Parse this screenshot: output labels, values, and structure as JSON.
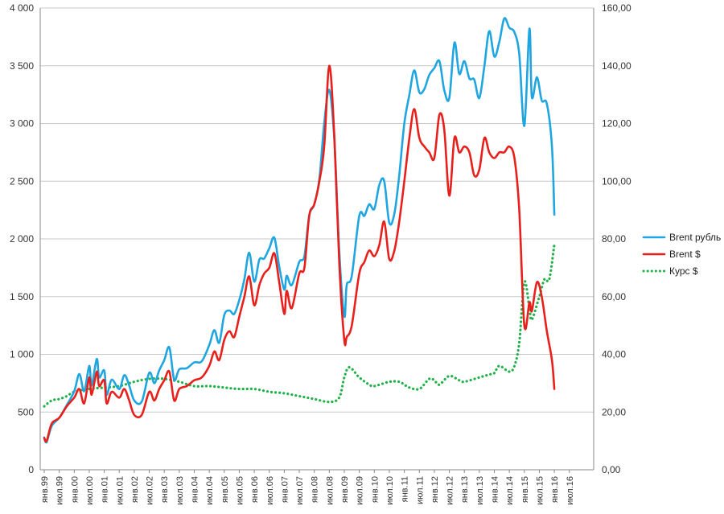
{
  "chart_data": {
    "type": "line",
    "title": "",
    "grid": true,
    "legend_position": "right",
    "x_labels": [
      "янв.99",
      "июл.99",
      "янв.00",
      "июл.00",
      "янв.01",
      "июл.01",
      "янв.02",
      "июл.02",
      "янв.03",
      "июл.03",
      "янв.04",
      "июл.04",
      "янв.05",
      "июл.05",
      "янв.06",
      "июл.06",
      "янв.07",
      "июл.07",
      "янв.08",
      "июл.08",
      "янв.09",
      "июл.09",
      "янв.10",
      "июл.10",
      "янв.11",
      "июл.11",
      "янв.12",
      "июл.12",
      "янв.13",
      "июл.13",
      "янв.14",
      "июл.14",
      "янв.15",
      "июл.15",
      "янв.16",
      "июл.16"
    ],
    "y_left": {
      "min": 0,
      "max": 4000,
      "ticks": [
        0,
        500,
        1000,
        1500,
        2000,
        2500,
        3000,
        3500,
        4000
      ],
      "tick_labels": [
        "0",
        "500",
        "1 000",
        "1 500",
        "2 000",
        "2 500",
        "3 000",
        "3 500",
        "4 000"
      ]
    },
    "y_right": {
      "min": 0,
      "max": 160,
      "ticks": [
        0,
        20,
        40,
        60,
        80,
        100,
        120,
        140,
        160
      ],
      "tick_labels": [
        "0,00",
        "20,00",
        "40,00",
        "60,00",
        "80,00",
        "100,00",
        "120,00",
        "140,00",
        "160,00"
      ]
    },
    "series": [
      {
        "name": "Brent рубль",
        "axis": "left",
        "color": "#1fa6e0",
        "style": "solid",
        "points": [
          [
            1999.0,
            280
          ],
          [
            1999.08,
            240
          ],
          [
            1999.25,
            380
          ],
          [
            1999.5,
            450
          ],
          [
            1999.75,
            560
          ],
          [
            2000.0,
            680
          ],
          [
            2000.17,
            830
          ],
          [
            2000.33,
            680
          ],
          [
            2000.5,
            900
          ],
          [
            2000.58,
            730
          ],
          [
            2000.75,
            960
          ],
          [
            2000.83,
            800
          ],
          [
            2001.0,
            860
          ],
          [
            2001.08,
            650
          ],
          [
            2001.25,
            780
          ],
          [
            2001.5,
            700
          ],
          [
            2001.67,
            820
          ],
          [
            2001.83,
            730
          ],
          [
            2002.0,
            600
          ],
          [
            2002.25,
            590
          ],
          [
            2002.5,
            840
          ],
          [
            2002.67,
            750
          ],
          [
            2002.83,
            860
          ],
          [
            2003.0,
            950
          ],
          [
            2003.17,
            1060
          ],
          [
            2003.33,
            780
          ],
          [
            2003.5,
            870
          ],
          [
            2003.75,
            880
          ],
          [
            2004.0,
            930
          ],
          [
            2004.25,
            940
          ],
          [
            2004.5,
            1080
          ],
          [
            2004.67,
            1210
          ],
          [
            2004.83,
            1100
          ],
          [
            2005.0,
            1340
          ],
          [
            2005.17,
            1380
          ],
          [
            2005.33,
            1350
          ],
          [
            2005.5,
            1470
          ],
          [
            2005.67,
            1650
          ],
          [
            2005.83,
            1880
          ],
          [
            2006.0,
            1630
          ],
          [
            2006.17,
            1820
          ],
          [
            2006.33,
            1830
          ],
          [
            2006.5,
            1920
          ],
          [
            2006.67,
            2010
          ],
          [
            2006.83,
            1760
          ],
          [
            2007.0,
            1560
          ],
          [
            2007.08,
            1680
          ],
          [
            2007.25,
            1600
          ],
          [
            2007.5,
            1800
          ],
          [
            2007.67,
            1850
          ],
          [
            2007.83,
            2200
          ],
          [
            2008.0,
            2300
          ],
          [
            2008.17,
            2520
          ],
          [
            2008.33,
            3000
          ],
          [
            2008.5,
            3290
          ],
          [
            2008.67,
            2850
          ],
          [
            2008.83,
            1900
          ],
          [
            2009.0,
            1330
          ],
          [
            2009.08,
            1600
          ],
          [
            2009.25,
            1680
          ],
          [
            2009.5,
            2200
          ],
          [
            2009.67,
            2200
          ],
          [
            2009.83,
            2300
          ],
          [
            2010.0,
            2260
          ],
          [
            2010.17,
            2470
          ],
          [
            2010.33,
            2500
          ],
          [
            2010.5,
            2140
          ],
          [
            2010.67,
            2220
          ],
          [
            2010.83,
            2550
          ],
          [
            2011.0,
            3000
          ],
          [
            2011.17,
            3250
          ],
          [
            2011.33,
            3460
          ],
          [
            2011.5,
            3270
          ],
          [
            2011.67,
            3300
          ],
          [
            2011.83,
            3420
          ],
          [
            2012.0,
            3480
          ],
          [
            2012.17,
            3540
          ],
          [
            2012.33,
            3290
          ],
          [
            2012.5,
            3220
          ],
          [
            2012.67,
            3700
          ],
          [
            2012.83,
            3430
          ],
          [
            2013.0,
            3540
          ],
          [
            2013.17,
            3390
          ],
          [
            2013.33,
            3380
          ],
          [
            2013.5,
            3220
          ],
          [
            2013.67,
            3500
          ],
          [
            2013.83,
            3800
          ],
          [
            2014.0,
            3580
          ],
          [
            2014.17,
            3710
          ],
          [
            2014.33,
            3910
          ],
          [
            2014.5,
            3830
          ],
          [
            2014.67,
            3790
          ],
          [
            2014.83,
            3600
          ],
          [
            2015.0,
            2980
          ],
          [
            2015.17,
            3820
          ],
          [
            2015.25,
            3230
          ],
          [
            2015.42,
            3400
          ],
          [
            2015.58,
            3200
          ],
          [
            2015.75,
            3170
          ],
          [
            2015.92,
            2800
          ],
          [
            2016.0,
            2210
          ]
        ]
      },
      {
        "name": "Brent $",
        "axis": "right",
        "color": "#e8201c",
        "style": "solid",
        "points": [
          [
            1999.0,
            11
          ],
          [
            1999.08,
            10
          ],
          [
            1999.25,
            16
          ],
          [
            1999.5,
            18
          ],
          [
            1999.75,
            22
          ],
          [
            2000.0,
            25
          ],
          [
            2000.17,
            28
          ],
          [
            2000.33,
            23
          ],
          [
            2000.5,
            32
          ],
          [
            2000.58,
            26
          ],
          [
            2000.75,
            34
          ],
          [
            2000.83,
            29
          ],
          [
            2001.0,
            31
          ],
          [
            2001.08,
            23
          ],
          [
            2001.25,
            27
          ],
          [
            2001.5,
            25
          ],
          [
            2001.67,
            28
          ],
          [
            2001.83,
            24
          ],
          [
            2002.0,
            19
          ],
          [
            2002.25,
            19
          ],
          [
            2002.5,
            27
          ],
          [
            2002.67,
            24
          ],
          [
            2002.83,
            28
          ],
          [
            2003.0,
            31
          ],
          [
            2003.17,
            34
          ],
          [
            2003.33,
            24
          ],
          [
            2003.5,
            28
          ],
          [
            2003.75,
            29
          ],
          [
            2004.0,
            31
          ],
          [
            2004.25,
            32
          ],
          [
            2004.5,
            36
          ],
          [
            2004.67,
            41
          ],
          [
            2004.83,
            38
          ],
          [
            2005.0,
            45
          ],
          [
            2005.17,
            48
          ],
          [
            2005.33,
            46
          ],
          [
            2005.5,
            53
          ],
          [
            2005.67,
            60
          ],
          [
            2005.83,
            67
          ],
          [
            2006.0,
            57
          ],
          [
            2006.17,
            64
          ],
          [
            2006.33,
            68
          ],
          [
            2006.5,
            70
          ],
          [
            2006.67,
            75
          ],
          [
            2006.83,
            65
          ],
          [
            2007.0,
            54
          ],
          [
            2007.08,
            62
          ],
          [
            2007.25,
            56
          ],
          [
            2007.5,
            68
          ],
          [
            2007.67,
            70
          ],
          [
            2007.83,
            88
          ],
          [
            2008.0,
            92
          ],
          [
            2008.17,
            100
          ],
          [
            2008.33,
            112
          ],
          [
            2008.5,
            140
          ],
          [
            2008.67,
            115
          ],
          [
            2008.83,
            72
          ],
          [
            2009.0,
            45
          ],
          [
            2009.08,
            46
          ],
          [
            2009.25,
            50
          ],
          [
            2009.5,
            68
          ],
          [
            2009.67,
            72
          ],
          [
            2009.83,
            76
          ],
          [
            2010.0,
            74
          ],
          [
            2010.17,
            78
          ],
          [
            2010.33,
            86
          ],
          [
            2010.5,
            73
          ],
          [
            2010.67,
            76
          ],
          [
            2010.83,
            86
          ],
          [
            2011.0,
            100
          ],
          [
            2011.17,
            115
          ],
          [
            2011.33,
            125
          ],
          [
            2011.5,
            115
          ],
          [
            2011.67,
            112
          ],
          [
            2011.83,
            110
          ],
          [
            2012.0,
            108
          ],
          [
            2012.17,
            123
          ],
          [
            2012.33,
            118
          ],
          [
            2012.5,
            95
          ],
          [
            2012.67,
            115
          ],
          [
            2012.83,
            110
          ],
          [
            2013.0,
            112
          ],
          [
            2013.17,
            110
          ],
          [
            2013.33,
            102
          ],
          [
            2013.5,
            104
          ],
          [
            2013.67,
            115
          ],
          [
            2013.83,
            110
          ],
          [
            2014.0,
            108
          ],
          [
            2014.17,
            110
          ],
          [
            2014.33,
            110
          ],
          [
            2014.5,
            112
          ],
          [
            2014.67,
            108
          ],
          [
            2014.83,
            90
          ],
          [
            2015.0,
            50
          ],
          [
            2015.17,
            58
          ],
          [
            2015.25,
            55
          ],
          [
            2015.42,
            65
          ],
          [
            2015.58,
            60
          ],
          [
            2015.75,
            48
          ],
          [
            2015.92,
            38
          ],
          [
            2016.0,
            28
          ]
        ]
      },
      {
        "name": "Курс $",
        "axis": "right",
        "color": "#1fb24a",
        "style": "dotted",
        "points": [
          [
            1999.0,
            22
          ],
          [
            1999.25,
            24
          ],
          [
            1999.5,
            24.5
          ],
          [
            1999.75,
            25.5
          ],
          [
            2000.0,
            27
          ],
          [
            2000.5,
            28
          ],
          [
            2001.0,
            28.5
          ],
          [
            2001.5,
            29
          ],
          [
            2002.0,
            30.5
          ],
          [
            2002.5,
            31.5
          ],
          [
            2003.0,
            31.5
          ],
          [
            2003.5,
            30.5
          ],
          [
            2004.0,
            29
          ],
          [
            2004.5,
            29
          ],
          [
            2005.0,
            28.5
          ],
          [
            2005.5,
            28
          ],
          [
            2006.0,
            28
          ],
          [
            2006.5,
            27
          ],
          [
            2007.0,
            26.5
          ],
          [
            2007.5,
            25.5
          ],
          [
            2008.0,
            24.5
          ],
          [
            2008.5,
            23.5
          ],
          [
            2008.83,
            25
          ],
          [
            2009.0,
            32
          ],
          [
            2009.17,
            35.5
          ],
          [
            2009.5,
            32
          ],
          [
            2009.83,
            29.5
          ],
          [
            2010.0,
            29
          ],
          [
            2010.5,
            30.5
          ],
          [
            2010.83,
            30.5
          ],
          [
            2011.0,
            29.5
          ],
          [
            2011.17,
            28.5
          ],
          [
            2011.5,
            28
          ],
          [
            2011.83,
            31.5
          ],
          [
            2012.0,
            31
          ],
          [
            2012.17,
            29.5
          ],
          [
            2012.5,
            32.5
          ],
          [
            2012.83,
            31
          ],
          [
            2013.0,
            30.5
          ],
          [
            2013.5,
            32
          ],
          [
            2013.83,
            33
          ],
          [
            2014.0,
            33.5
          ],
          [
            2014.17,
            36
          ],
          [
            2014.5,
            34
          ],
          [
            2014.67,
            36
          ],
          [
            2014.83,
            44
          ],
          [
            2015.0,
            65
          ],
          [
            2015.17,
            56
          ],
          [
            2015.25,
            52
          ],
          [
            2015.5,
            60
          ],
          [
            2015.67,
            66
          ],
          [
            2015.83,
            66
          ],
          [
            2016.0,
            78
          ]
        ]
      }
    ]
  }
}
